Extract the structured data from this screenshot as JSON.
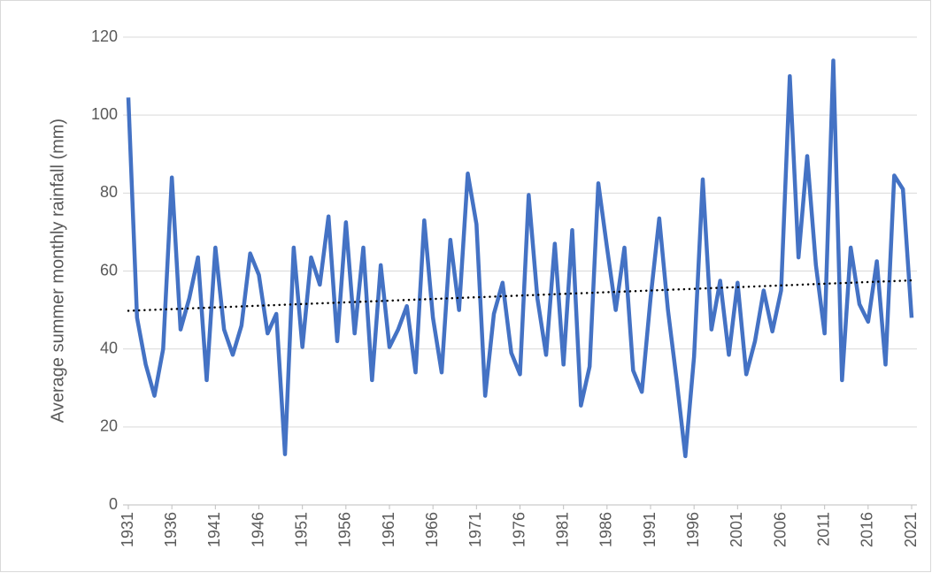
{
  "chart_data": {
    "type": "line",
    "y_label": "Average summer monthly rainfall (mm)",
    "x": [
      1931,
      1932,
      1933,
      1934,
      1935,
      1936,
      1937,
      1938,
      1939,
      1940,
      1941,
      1942,
      1943,
      1944,
      1945,
      1946,
      1947,
      1948,
      1949,
      1950,
      1951,
      1952,
      1953,
      1954,
      1955,
      1956,
      1957,
      1958,
      1959,
      1960,
      1961,
      1962,
      1963,
      1964,
      1965,
      1966,
      1967,
      1968,
      1969,
      1970,
      1971,
      1972,
      1973,
      1974,
      1975,
      1976,
      1977,
      1978,
      1979,
      1980,
      1981,
      1982,
      1983,
      1984,
      1985,
      1986,
      1987,
      1988,
      1989,
      1990,
      1991,
      1992,
      1993,
      1994,
      1995,
      1996,
      1997,
      1998,
      1999,
      2000,
      2001,
      2002,
      2003,
      2004,
      2005,
      2006,
      2007,
      2008,
      2009,
      2010,
      2011,
      2012,
      2013,
      2014,
      2015,
      2016,
      2017,
      2018,
      2019,
      2020,
      2021
    ],
    "series": [
      {
        "color": "#4472c4",
        "values": [
          104.5,
          48,
          36,
          28,
          40,
          84,
          45,
          53,
          63.5,
          32,
          66,
          45,
          38.5,
          46,
          64.5,
          59,
          44,
          49,
          13,
          66,
          40.5,
          63.5,
          56.5,
          74,
          42,
          72.5,
          44,
          66,
          32,
          61.5,
          40.5,
          45,
          51,
          34,
          73,
          48,
          34,
          68,
          50,
          85,
          72,
          28,
          49,
          57,
          39,
          33.5,
          79.5,
          53,
          38.5,
          67,
          36,
          70.5,
          25.5,
          35.5,
          82.5,
          66,
          50,
          66,
          34.5,
          29,
          53,
          73.5,
          50,
          32,
          12.5,
          38,
          83.5,
          45,
          57.5,
          38.5,
          57,
          33.5,
          42,
          55,
          44.5,
          55,
          110,
          63.5,
          89.5,
          61.5,
          44,
          114,
          32,
          66,
          51.5,
          47,
          62.5,
          36,
          84.5,
          81,
          48
        ]
      }
    ],
    "trendline": {
      "x": [
        1931,
        2021
      ],
      "values": [
        49.8,
        57.6
      ],
      "color": "#000000"
    },
    "xlim": [
      1931,
      2021
    ],
    "xticks": [
      1931,
      1936,
      1941,
      1946,
      1951,
      1956,
      1961,
      1966,
      1971,
      1976,
      1981,
      1986,
      1991,
      1996,
      2001,
      2006,
      2011,
      2016,
      2021
    ],
    "ylim": [
      0,
      120
    ],
    "yticks": [
      0,
      20,
      40,
      60,
      80,
      100,
      120
    ],
    "grid": true
  }
}
